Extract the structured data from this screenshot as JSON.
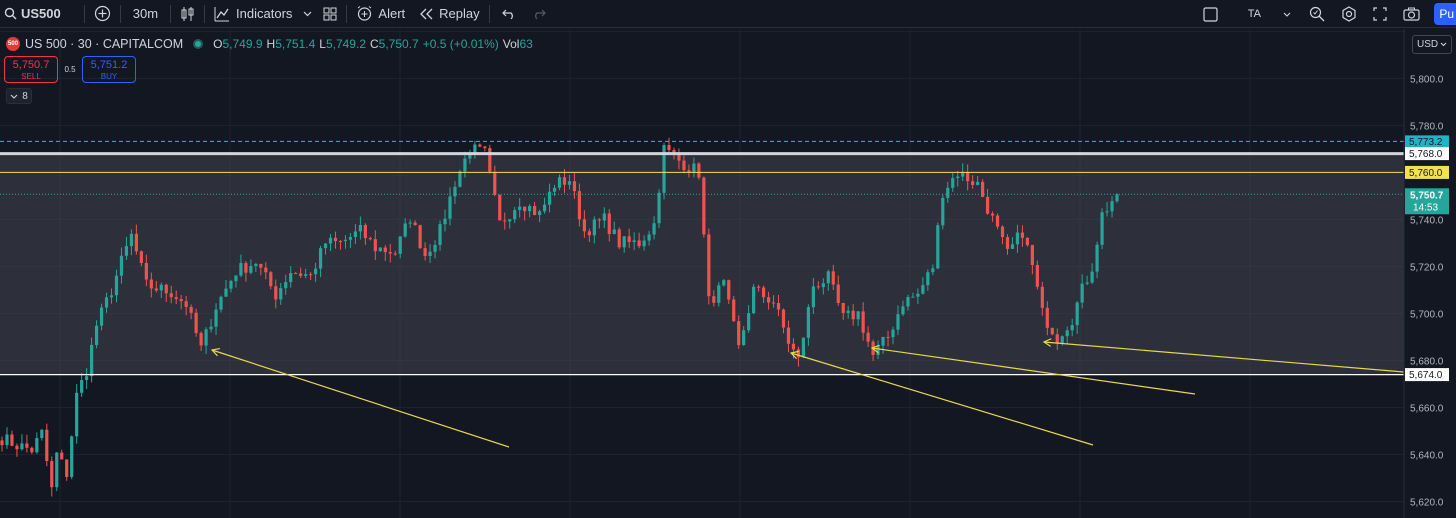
{
  "toolbar": {
    "symbol": "US500",
    "interval": "30m",
    "indicators": "Indicators",
    "alert": "Alert",
    "replay": "Replay",
    "ta": "TA",
    "publish": "Pu"
  },
  "legend": {
    "logo": "500",
    "title": "US 500 · 30 · CAPITALCOM",
    "open_k": "O",
    "open_v": "5,749.9",
    "high_k": "H",
    "high_v": "5,751.4",
    "low_k": "L",
    "low_v": "5,749.2",
    "close_k": "C",
    "close_v": "5,750.7",
    "change": "+0.5 (+0.01%)",
    "vol_k": "Vol",
    "vol_v": "63"
  },
  "trade": {
    "sell_price": "5,750.7",
    "sell_label": "SELL",
    "spread": "0.5",
    "buy_price": "5,751.2",
    "buy_label": "BUY"
  },
  "indicator_toggle": "8",
  "currency": "USD",
  "colors": {
    "up": "#26a69a",
    "down": "#ef5350",
    "accent": "#2962ff",
    "resistance": "#f5e050",
    "arrow": "#e9d84a",
    "support": "#ffffff",
    "zone": "#434651",
    "dashed": "#22c4d8"
  },
  "price_axis": {
    "ticks": [
      "5,800.0",
      "5,780.0",
      "5,740.0",
      "5,720.0",
      "5,700.0",
      "5,680.0",
      "5,660.0",
      "5,640.0",
      "5,620.0"
    ],
    "labels": {
      "dashed": "5,773.2",
      "upper_zone": "5,768.0",
      "resistance": "5,760.0",
      "last": "5,750.7",
      "countdown": "14:53",
      "support": "5,674.0"
    }
  },
  "chart_data": {
    "type": "candlestick",
    "ylim": [
      5613,
      5821
    ],
    "levels": {
      "dashed_high": 5773.2,
      "zone_top": 5768.0,
      "resistance": 5760.0,
      "last_price": 5750.7,
      "support": 5674.0
    },
    "anchors": [
      [
        0,
        5647
      ],
      [
        3,
        5644
      ],
      [
        6,
        5642
      ],
      [
        8,
        5649
      ],
      [
        10,
        5625
      ],
      [
        11,
        5640
      ],
      [
        13,
        5632
      ],
      [
        15,
        5665
      ],
      [
        17,
        5676
      ],
      [
        19,
        5695
      ],
      [
        22,
        5710
      ],
      [
        24,
        5722
      ],
      [
        26,
        5733
      ],
      [
        29,
        5712
      ],
      [
        34,
        5709
      ],
      [
        37,
        5704
      ],
      [
        40,
        5685
      ],
      [
        43,
        5703
      ],
      [
        47,
        5718
      ],
      [
        51,
        5722
      ],
      [
        55,
        5708
      ],
      [
        58,
        5718
      ],
      [
        62,
        5716
      ],
      [
        65,
        5730
      ],
      [
        68,
        5730
      ],
      [
        72,
        5735
      ],
      [
        75,
        5728
      ],
      [
        79,
        5726
      ],
      [
        82,
        5741
      ],
      [
        85,
        5725
      ],
      [
        88,
        5735
      ],
      [
        91,
        5756
      ],
      [
        94,
        5770
      ],
      [
        97,
        5768
      ],
      [
        100,
        5738
      ],
      [
        104,
        5748
      ],
      [
        108,
        5742
      ],
      [
        111,
        5755
      ],
      [
        114,
        5757
      ],
      [
        117,
        5735
      ],
      [
        121,
        5740
      ],
      [
        124,
        5730
      ],
      [
        128,
        5730
      ],
      [
        131,
        5738
      ],
      [
        133,
        5770
      ],
      [
        136,
        5765
      ],
      [
        140,
        5760
      ],
      [
        142,
        5705
      ],
      [
        145,
        5712
      ],
      [
        148,
        5685
      ],
      [
        151,
        5710
      ],
      [
        155,
        5705
      ],
      [
        158,
        5688
      ],
      [
        160,
        5680
      ],
      [
        163,
        5712
      ],
      [
        166,
        5715
      ],
      [
        169,
        5698
      ],
      [
        172,
        5700
      ],
      [
        175,
        5682
      ],
      [
        178,
        5690
      ],
      [
        181,
        5705
      ],
      [
        184,
        5708
      ],
      [
        187,
        5720
      ],
      [
        189,
        5752
      ],
      [
        192,
        5760
      ],
      [
        196,
        5755
      ],
      [
        199,
        5740
      ],
      [
        202,
        5725
      ],
      [
        205,
        5735
      ],
      [
        207,
        5720
      ],
      [
        209,
        5700
      ],
      [
        212,
        5690
      ],
      [
        215,
        5698
      ],
      [
        217,
        5710
      ],
      [
        219,
        5720
      ],
      [
        221,
        5742
      ],
      [
        224,
        5751
      ]
    ],
    "annotations": [
      {
        "type": "arrow",
        "from": [
          509,
          447
        ],
        "to": [
          212,
          350
        ]
      },
      {
        "type": "arrow",
        "from": [
          1093,
          445
        ],
        "to": [
          791,
          353
        ]
      },
      {
        "type": "arrow",
        "from": [
          1195,
          394
        ],
        "to": [
          872,
          348
        ]
      },
      {
        "type": "arrow",
        "from": [
          1404,
          372
        ],
        "to": [
          1044,
          342
        ]
      }
    ]
  }
}
